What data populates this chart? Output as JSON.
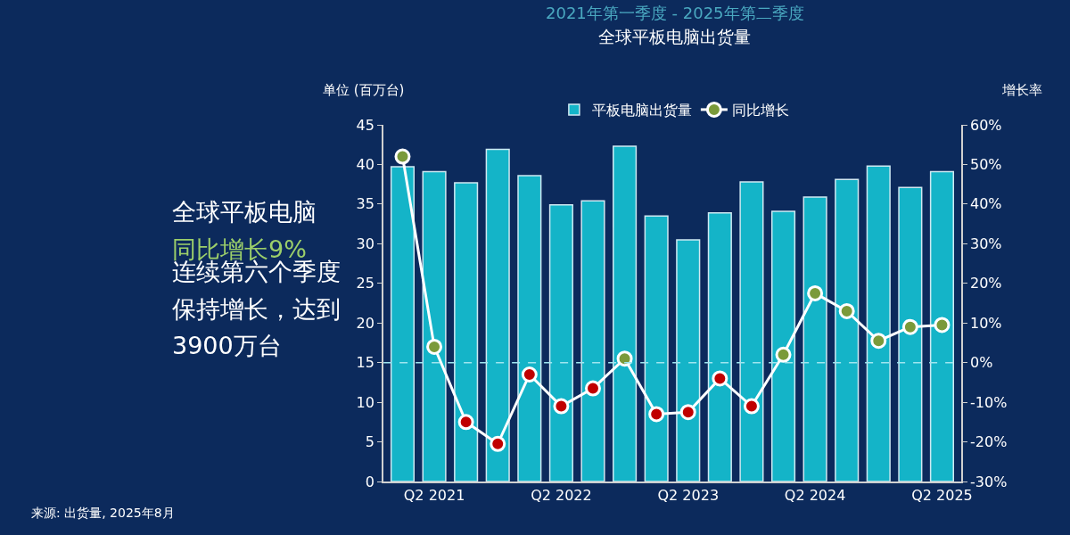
{
  "chart_data": {
    "type": "bar",
    "title": "全球平板电脑出货量",
    "subtitle": "2021年第一季度 - 2025年第二季度",
    "ylabel": "单位 (百万台)",
    "y2label": "增长率",
    "categories": [
      null,
      "Q2 2021",
      null,
      null,
      null,
      "Q2 2022",
      null,
      null,
      null,
      "Q2 2023",
      null,
      null,
      null,
      "Q2 2024",
      null,
      null,
      null,
      "Q2 2025"
    ],
    "series": [
      {
        "name": "平板电脑出货量",
        "color": "#14b4c8",
        "values": [
          39.7,
          39.1,
          37.7,
          41.9,
          38.6,
          34.9,
          35.4,
          42.3,
          33.5,
          30.5,
          33.9,
          37.8,
          34.1,
          35.9,
          38.1,
          39.8,
          37.1,
          39.1
        ]
      },
      {
        "name": "同比增长",
        "type": "line",
        "axis": "y2",
        "color": "#ffffff",
        "marker": "circle",
        "colors": [
          "#7a9a3a",
          "#7a9a3a",
          "#c00000",
          "#c00000",
          "#c00000",
          "#c00000",
          "#c00000",
          "#7a9a3a",
          "#c00000",
          "#c00000",
          "#c00000",
          "#c00000",
          "#7a9a3a",
          "#7a9a3a",
          "#7a9a3a",
          "#7a9a3a",
          "#7a9a3a",
          "#7a9a3a"
        ],
        "values": [
          52,
          4,
          -15,
          -20.5,
          -3,
          -11,
          -6.5,
          1,
          -13,
          -12.5,
          -4,
          -11,
          2,
          17.5,
          13,
          5.5,
          9,
          9.5
        ]
      }
    ],
    "ylim": [
      0,
      45
    ],
    "yticks": [
      0,
      5,
      10,
      15,
      20,
      25,
      30,
      35,
      40,
      45
    ],
    "y2lim": [
      -30,
      60
    ],
    "y2ticks": [
      {
        "value": -30,
        "label": "-30%"
      },
      {
        "value": -20,
        "label": "-20%"
      },
      {
        "value": -10,
        "label": "-10%"
      },
      {
        "value": 0,
        "label": "0%"
      },
      {
        "value": 10,
        "label": "10%"
      },
      {
        "value": 20,
        "label": "20%"
      },
      {
        "value": 30,
        "label": "30%"
      },
      {
        "value": 40,
        "label": "40%"
      },
      {
        "value": 50,
        "label": "50%"
      },
      {
        "value": 60,
        "label": "60%"
      }
    ],
    "ref_lines": [
      {
        "axis": "y2",
        "value": 0,
        "color": "#9fe6f0",
        "line_style": "dashed"
      }
    ],
    "annotations": [
      "全球平板电脑",
      "同比增长9%",
      "连续第六个季度",
      "保持增长，达到",
      "3900万台",
      "来源: 出货量, 2025年8月"
    ],
    "legend": "top",
    "grid": false
  }
}
